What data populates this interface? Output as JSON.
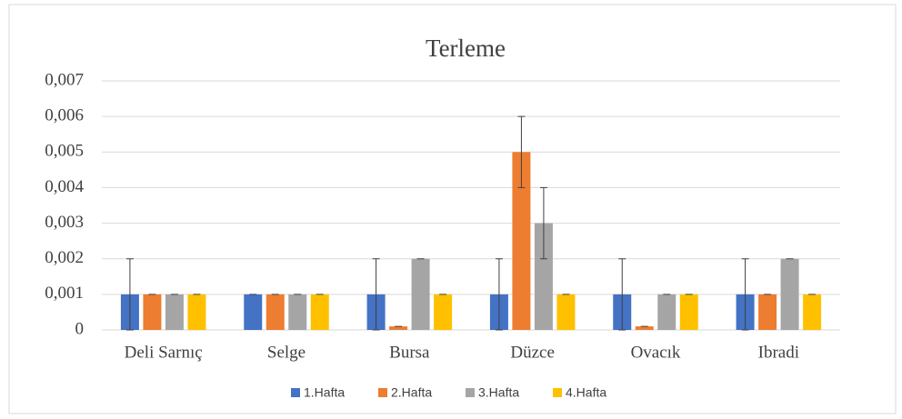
{
  "chart_data": {
    "type": "bar",
    "title": "Terleme",
    "categories": [
      "Deli Sarnıç",
      "Selge",
      "Bursa",
      "Düzce",
      "Ovacık",
      "Ibradi"
    ],
    "series": [
      {
        "name": "1.Hafta",
        "color": "#4472c4",
        "values": [
          0.001,
          0.001,
          0.001,
          0.001,
          0.001,
          0.001
        ],
        "errors": [
          0.001,
          0,
          0.001,
          0.001,
          0.001,
          0.001
        ]
      },
      {
        "name": "2.Hafta",
        "color": "#ed7d31",
        "values": [
          0.001,
          0.001,
          0.0001,
          0.005,
          0.0001,
          0.001
        ],
        "errors": [
          0,
          0,
          0,
          0.001,
          0,
          0
        ]
      },
      {
        "name": "3.Hafta",
        "color": "#a5a5a5",
        "values": [
          0.001,
          0.001,
          0.002,
          0.003,
          0.001,
          0.002
        ],
        "errors": [
          0,
          0,
          0,
          0.001,
          0,
          0
        ]
      },
      {
        "name": "4.Hafta",
        "color": "#ffc000",
        "values": [
          0.001,
          0.001,
          0.001,
          0.001,
          0.001,
          0.001
        ],
        "errors": [
          0,
          0,
          0,
          0,
          0,
          0
        ]
      }
    ],
    "ylim": [
      0,
      0.007
    ],
    "yticks": [
      0,
      {
        "value": 0.001,
        "label": "0,001"
      },
      {
        "value": 0.002,
        "label": "0,002"
      },
      {
        "value": 0.003,
        "label": "0,003"
      },
      {
        "value": 0.004,
        "label": "0,004"
      },
      {
        "value": 0.005,
        "label": "0,005"
      },
      {
        "value": 0.006,
        "label": "0,006"
      },
      {
        "value": 0.007,
        "label": "0,007"
      }
    ],
    "grid": true,
    "legend": "bottom"
  }
}
